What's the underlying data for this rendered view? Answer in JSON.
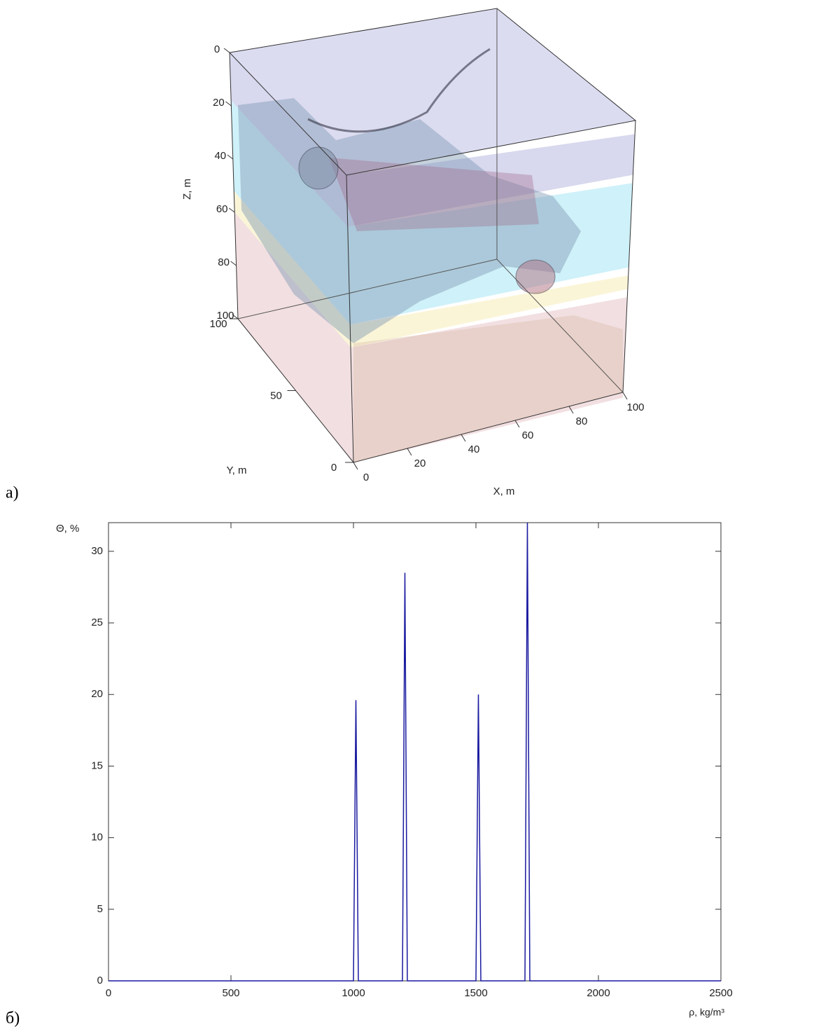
{
  "chart_data": [
    {
      "type": "3d",
      "panel_label": "а)",
      "xlabel": "X, m",
      "ylabel": "Y, m",
      "zlabel": "Z, m",
      "xlim": [
        0,
        100
      ],
      "ylim": [
        0,
        100
      ],
      "zlim": [
        0,
        100
      ],
      "xticks": [
        0,
        20,
        40,
        60,
        80,
        100
      ],
      "yticks": [
        0,
        50,
        100
      ],
      "zticks": [
        0,
        20,
        40,
        60,
        80,
        100
      ]
    },
    {
      "type": "line",
      "panel_label": "б)",
      "xlabel": "ρ, kg/m³",
      "ylabel": "Θ, %",
      "x": [
        0,
        1000,
        1010,
        1020,
        1200,
        1210,
        1220,
        1500,
        1510,
        1520,
        1700,
        1710,
        1720,
        2500
      ],
      "series": [
        {
          "color": "#1a1aa0",
          "values": [
            0,
            0,
            19.6,
            0,
            0,
            28.5,
            0,
            0,
            20,
            0,
            0,
            32,
            0,
            0
          ]
        }
      ],
      "xlim": [
        0,
        2500
      ],
      "ylim": [
        0,
        32
      ],
      "xticks": [
        0,
        500,
        1000,
        1500,
        2000,
        2500
      ],
      "yticks": [
        0,
        5,
        10,
        15,
        20,
        25,
        30
      ]
    }
  ]
}
